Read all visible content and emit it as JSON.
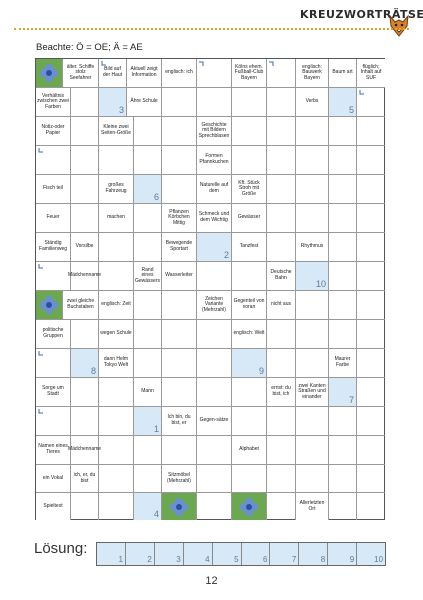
{
  "header": {
    "title": "KREUZWORTRÄTSEL",
    "hint": "Beachte: Ö = OE; Ä = AE"
  },
  "cells": {
    "r0": [
      "",
      "älter. Schiffe stolz Seefahrer",
      "Bild auf der Haut",
      "Aktuell zeigt Information",
      "englisch: ich",
      "Kölns ehem. Fußball-Club Bayern",
      "",
      "englisch: Bauwerk Bayern",
      "Baum art",
      "flüglich; Inhalt auf SUF"
    ],
    "r1": [
      "Verhältnis zwischen zwei Farben",
      "",
      "",
      "Ähre Schule",
      "",
      "",
      "",
      "Verbs",
      "",
      ""
    ],
    "r2": [
      "Notiz-oder Papier",
      "",
      "Kleine zwei Seiten-Größe",
      "",
      "Geschichte mit Bildern Sprechblasen",
      "",
      "",
      "",
      "",
      ""
    ],
    "r3": [
      "",
      "",
      "",
      "",
      "",
      "Formen Pfannkuchen",
      "",
      "",
      "",
      ""
    ],
    "r4": [
      "Fisch teil",
      "",
      "großes Fahrzeug",
      "",
      "",
      "Naturelle auf dem",
      "Kft. Stück Stroh mit Größe",
      "",
      "",
      ""
    ],
    "r5": [
      "Feuer",
      "",
      "machen",
      "",
      "Pflanzen Körbchen Mittig",
      "Schmeck und dem Wichtig",
      "Gewässer",
      "",
      "",
      ""
    ],
    "r6": [
      "Ständig Familienweg",
      "Vorsilbe",
      "",
      "",
      "Bewegende Sportart",
      "",
      "Tanzfest",
      "",
      "Rhythmus",
      ""
    ],
    "r7": [
      "",
      "Mädchenname",
      "",
      "Rand eines Gewässers",
      "Wasserleiter",
      "",
      "",
      "Deutsche Bahn",
      "",
      ""
    ],
    "r8": [
      "",
      "zwei gleiche Buchstaben",
      "englisch: Zeit",
      "",
      "",
      "Zeichen Variante (Mehrzahl)",
      "Gegenteil von voran",
      "nicht aus",
      "",
      ""
    ],
    "r9": [
      "politische Gruppen",
      "",
      "wegen Schule",
      "",
      "",
      "",
      "englisch: Welt",
      "",
      "",
      ""
    ],
    "r10": [
      "",
      "",
      "dann Helm Tokyo Welt",
      "",
      "",
      "",
      "",
      "",
      "Maurer Farbe",
      ""
    ],
    "r11": [
      "Sorge um Stadt",
      "",
      "",
      "Mann",
      "",
      "",
      "",
      "ernst: du bist, ich",
      "zwei Kanten Straßen und einander",
      ""
    ],
    "r12": [
      "",
      "",
      "",
      "",
      "Ich bin, du bist, er",
      "Gegen-sätze",
      "",
      "",
      "",
      ""
    ],
    "r13": [
      "Namen eines Tieres",
      "Mädchenname",
      "",
      "",
      "",
      "",
      "Alphabet",
      "",
      "",
      ""
    ],
    "r14": [
      "ein Vokal",
      "ich, er, du bist",
      "",
      "",
      "Sitzmöbel (Mehrzahl)",
      "",
      "",
      "",
      "",
      ""
    ],
    "r15": [
      "Spieltext",
      "",
      "",
      "",
      "",
      "",
      "",
      "Allerletzten Ort",
      "",
      ""
    ]
  },
  "numbers": {
    "n1": "1",
    "n2": "2",
    "n3": "3",
    "n4": "4",
    "n5": "5",
    "n6": "6",
    "n7": "7",
    "n8": "8",
    "n9": "9",
    "n10": "10"
  },
  "solution": {
    "label": "Lösung:",
    "slots": [
      "1",
      "2",
      "3",
      "4",
      "5",
      "6",
      "7",
      "8",
      "9",
      "10"
    ]
  },
  "footer": {
    "page_number": "12"
  },
  "colors": {
    "blue_cell": "#d7e8f6",
    "accent_dots": "#e6a028",
    "image_bg": "#6ba84f"
  },
  "icons": [
    "fox-icon",
    "flower-icon"
  ]
}
